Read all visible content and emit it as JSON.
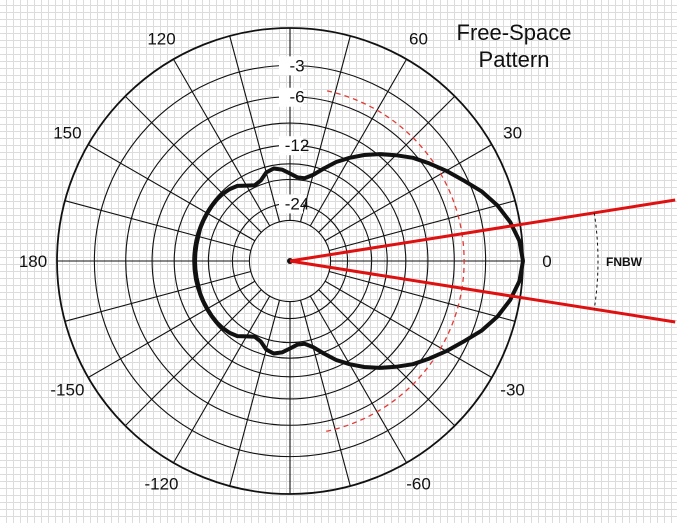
{
  "title_lines": [
    "Free-Space",
    "Pattern"
  ],
  "annotation": "FNBW",
  "chart_data": {
    "type": "polar",
    "title": "Free-Space Pattern",
    "angle_unit": "degrees",
    "angle_ticks": [
      0,
      30,
      60,
      90,
      120,
      150,
      180,
      -150,
      -120,
      -90,
      -60,
      -30
    ],
    "angle_tick_labels": [
      {
        "angle": 0,
        "text": "0"
      },
      {
        "angle": 30,
        "text": "30"
      },
      {
        "angle": 60,
        "text": "60"
      },
      {
        "angle": 120,
        "text": "120"
      },
      {
        "angle": 150,
        "text": "150"
      },
      {
        "angle": 180,
        "text": "180"
      },
      {
        "angle": -150,
        "text": "-150"
      },
      {
        "angle": -120,
        "text": "-120"
      },
      {
        "angle": -60,
        "text": "-60"
      },
      {
        "angle": -30,
        "text": "-30"
      }
    ],
    "radial_unit": "dB",
    "radial_rings_db": [
      0,
      -3,
      -6,
      -9,
      -12,
      -15,
      -18,
      -24,
      -30
    ],
    "radial_ring_labels": [
      {
        "db": -3,
        "text": "-3"
      },
      {
        "db": -6,
        "text": "-6"
      },
      {
        "db": -12,
        "text": "-12"
      },
      {
        "db": -24,
        "text": "-24"
      }
    ],
    "spoke_step_deg": 15,
    "pattern": {
      "unit": "dB",
      "color": "#111111",
      "points": [
        [
          0,
          0
        ],
        [
          5,
          -0.2
        ],
        [
          10,
          -0.7
        ],
        [
          15,
          -1.4
        ],
        [
          20,
          -2.3
        ],
        [
          25,
          -3.4
        ],
        [
          30,
          -4.4
        ],
        [
          35,
          -5.4
        ],
        [
          40,
          -6.4
        ],
        [
          45,
          -7.6
        ],
        [
          50,
          -8.8
        ],
        [
          55,
          -10.1
        ],
        [
          60,
          -11.5
        ],
        [
          65,
          -13.0
        ],
        [
          70,
          -14.8
        ],
        [
          75,
          -16.5
        ],
        [
          80,
          -17.5
        ],
        [
          85,
          -17.5
        ],
        [
          90,
          -16.8
        ],
        [
          95,
          -16.0
        ],
        [
          100,
          -15.6
        ],
        [
          105,
          -16.0
        ],
        [
          110,
          -17.2
        ],
        [
          115,
          -17.6
        ],
        [
          120,
          -16.9
        ],
        [
          125,
          -16.0
        ],
        [
          130,
          -15.6
        ],
        [
          135,
          -15.4
        ],
        [
          140,
          -15.3
        ],
        [
          145,
          -15.3
        ],
        [
          150,
          -15.3
        ],
        [
          155,
          -15.3
        ],
        [
          160,
          -15.3
        ],
        [
          165,
          -15.4
        ],
        [
          170,
          -15.4
        ],
        [
          175,
          -15.4
        ],
        [
          180,
          -15.4
        ],
        [
          -175,
          -15.4
        ],
        [
          -170,
          -15.4
        ],
        [
          -165,
          -15.4
        ],
        [
          -160,
          -15.3
        ],
        [
          -155,
          -15.3
        ],
        [
          -150,
          -15.3
        ],
        [
          -145,
          -15.3
        ],
        [
          -140,
          -15.3
        ],
        [
          -135,
          -15.4
        ],
        [
          -130,
          -15.6
        ],
        [
          -125,
          -16.0
        ],
        [
          -120,
          -16.9
        ],
        [
          -115,
          -17.6
        ],
        [
          -110,
          -17.2
        ],
        [
          -105,
          -16.0
        ],
        [
          -100,
          -15.6
        ],
        [
          -95,
          -16.0
        ],
        [
          -90,
          -16.8
        ],
        [
          -85,
          -17.5
        ],
        [
          -80,
          -17.5
        ],
        [
          -75,
          -16.5
        ],
        [
          -70,
          -14.8
        ],
        [
          -65,
          -13.0
        ],
        [
          -60,
          -11.5
        ],
        [
          -55,
          -10.1
        ],
        [
          -50,
          -8.8
        ],
        [
          -45,
          -7.6
        ],
        [
          -40,
          -6.4
        ],
        [
          -35,
          -5.4
        ],
        [
          -30,
          -4.4
        ],
        [
          -25,
          -3.4
        ],
        [
          -20,
          -2.3
        ],
        [
          -15,
          -1.4
        ],
        [
          -10,
          -0.7
        ],
        [
          -5,
          -0.2
        ]
      ]
    },
    "reference_arc": {
      "style": "dashed",
      "color": "#e53935",
      "db": -5,
      "from_angle": -78,
      "to_angle": 78
    },
    "fnbw_lines": {
      "color": "#e01010",
      "angles": [
        9,
        -9
      ]
    }
  }
}
